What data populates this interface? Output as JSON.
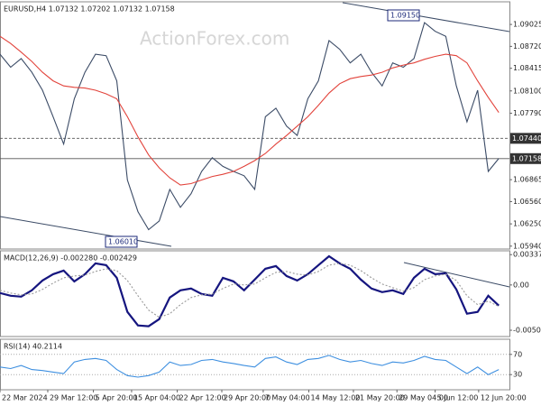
{
  "watermark": "ActionForex.com",
  "chart_data": [
    {
      "type": "line",
      "title": "EURUSD,H4 1.07132 1.07202 1.07132 1.07158",
      "ylim": [
        1.059,
        1.0934
      ],
      "xlim": [
        0,
        48
      ],
      "yticks": [
        1.09025,
        {
          "value": 1.0872,
          "label": "1.08720"
        },
        1.08415,
        {
          "value": 1.081,
          "label": "1.08100"
        },
        {
          "value": 1.0779,
          "label": "1.07790"
        },
        1.06865,
        {
          "value": 1.0656,
          "label": "1.06560"
        },
        {
          "value": 1.0625,
          "label": "1.06250"
        },
        {
          "value": 1.0594,
          "label": "1.05940"
        }
      ],
      "levels": [
        {
          "value": 1.0744,
          "label": "1.07440",
          "style": "dashed"
        },
        {
          "value": 1.07158,
          "label": "1.07158",
          "style": "solid"
        }
      ],
      "annotations": [
        "1.09150",
        "1.06010"
      ],
      "series": [
        {
          "name": "EURUSD",
          "color": "#3b4b66",
          "values": [
            1.0861,
            1.0843,
            1.0855,
            1.0836,
            1.0811,
            1.0774,
            1.0736,
            1.0799,
            1.0836,
            1.0861,
            1.0859,
            1.0824,
            1.0686,
            1.0642,
            1.0617,
            1.0629,
            1.0673,
            1.0648,
            1.0667,
            1.0698,
            1.0717,
            1.0705,
            1.0698,
            1.0692,
            1.0673,
            1.0774,
            1.0786,
            1.0761,
            1.0748,
            1.0799,
            1.0824,
            1.088,
            1.0868,
            1.0849,
            1.0861,
            1.0836,
            1.0817,
            1.0849,
            1.0843,
            1.0855,
            1.0905,
            1.0893,
            1.0886,
            1.0817,
            1.0767,
            1.0811,
            1.0698,
            1.0716
          ]
        },
        {
          "name": "MA",
          "color": "#e2433b",
          "values": [
            1.0886,
            1.0876,
            1.0864,
            1.0851,
            1.0836,
            1.0824,
            1.0817,
            1.0815,
            1.0814,
            1.0811,
            1.0806,
            1.0799,
            1.0774,
            1.0746,
            1.0721,
            1.0703,
            1.0689,
            1.0679,
            1.0681,
            1.0686,
            1.0691,
            1.0694,
            1.0698,
            1.0705,
            1.0713,
            1.0723,
            1.0736,
            1.0748,
            1.0761,
            1.0774,
            1.079,
            1.0807,
            1.082,
            1.0827,
            1.083,
            1.0832,
            1.0836,
            1.0842,
            1.0846,
            1.0849,
            1.0854,
            1.0858,
            1.0861,
            1.0859,
            1.0849,
            1.0824,
            1.0801,
            1.078
          ]
        }
      ]
    },
    {
      "type": "line",
      "title": "MACD(12,26,9) -0.002280 -0.002429",
      "ylim": [
        -0.00574,
        0.0038
      ],
      "xlim": [
        0,
        48
      ],
      "yticks": [
        0.003375,
        {
          "value": 0,
          "label": "0.00"
        },
        -0.00504
      ],
      "series": [
        {
          "name": "MACD",
          "color": "#15157f",
          "width": 2.2,
          "values": [
            -0.0009,
            -0.0012,
            -0.0013,
            -0.0006,
            0.0005,
            0.0012,
            0.0016,
            0.0004,
            0.0012,
            0.0024,
            0.0022,
            0.0008,
            -0.003,
            -0.0045,
            -0.0046,
            -0.0038,
            -0.0014,
            -0.0006,
            -0.0004,
            -0.001,
            -0.0012,
            0.0008,
            0.0004,
            -0.0006,
            0.0006,
            0.0018,
            0.0021,
            0.001,
            0.0005,
            0.0012,
            0.0022,
            0.0032,
            0.0024,
            0.0018,
            0.0006,
            -0.0004,
            -0.0008,
            -0.0006,
            -0.001,
            0.0008,
            0.0018,
            0.0012,
            0.0013,
            -0.0005,
            -0.0032,
            -0.003,
            -0.0012,
            -0.0023
          ]
        },
        {
          "name": "Signal",
          "color": "#9a9a9a",
          "dash": true,
          "values": [
            -0.0006,
            -0.0009,
            -0.0011,
            -0.001,
            -0.0005,
            0.0002,
            0.0008,
            0.001,
            0.0011,
            0.0015,
            0.0018,
            0.0016,
            0.0005,
            -0.0012,
            -0.0028,
            -0.0036,
            -0.0032,
            -0.0022,
            -0.0014,
            -0.0011,
            -0.001,
            -0.0004,
            0.0001,
            0.0,
            0.0001,
            0.0008,
            0.0014,
            0.0015,
            0.0012,
            0.0011,
            0.0015,
            0.0022,
            0.0024,
            0.0022,
            0.0016,
            0.0008,
            0.0001,
            -0.0003,
            -0.0007,
            -0.0003,
            0.0006,
            0.001,
            0.0012,
            0.0005,
            -0.0012,
            -0.0022,
            -0.0018,
            -0.0024
          ]
        }
      ]
    },
    {
      "type": "line",
      "title": "RSI(14) 40.2114",
      "ylim": [
        0,
        100
      ],
      "xlim": [
        0,
        48
      ],
      "grid": true,
      "yticks": [
        70,
        30
      ],
      "xticks": [
        {
          "value": 0,
          "label": "22 Mar 2024"
        },
        {
          "value": 4.5,
          "label": "29 Mar 12:00"
        },
        {
          "value": 8.8,
          "label": "5 Apr 20:00"
        },
        {
          "value": 12.4,
          "label": "15 Apr 04:00"
        },
        {
          "value": 16.7,
          "label": "22 Apr 12:00"
        },
        {
          "value": 20.9,
          "label": "29 Apr 20:00"
        },
        {
          "value": 24.8,
          "label": "7 May 04:00"
        },
        {
          "value": 29.1,
          "label": "14 May 12:00"
        },
        {
          "value": 33.3,
          "label": "21 May 20:00"
        },
        {
          "value": 37.4,
          "label": "29 May 04:00"
        },
        {
          "value": 41,
          "label": "5 Jun 12:00"
        },
        {
          "value": 45.1,
          "label": "12 Jun 20:00"
        }
      ],
      "series": [
        {
          "name": "RSI",
          "color": "#3d8fe0",
          "values": [
            45,
            42,
            48,
            40,
            38,
            35,
            32,
            55,
            60,
            62,
            58,
            40,
            28,
            25,
            28,
            35,
            55,
            48,
            50,
            58,
            60,
            55,
            52,
            48,
            45,
            62,
            65,
            55,
            50,
            60,
            62,
            68,
            60,
            55,
            58,
            52,
            48,
            55,
            53,
            58,
            66,
            60,
            58,
            45,
            32,
            45,
            30,
            40
          ]
        }
      ]
    }
  ]
}
